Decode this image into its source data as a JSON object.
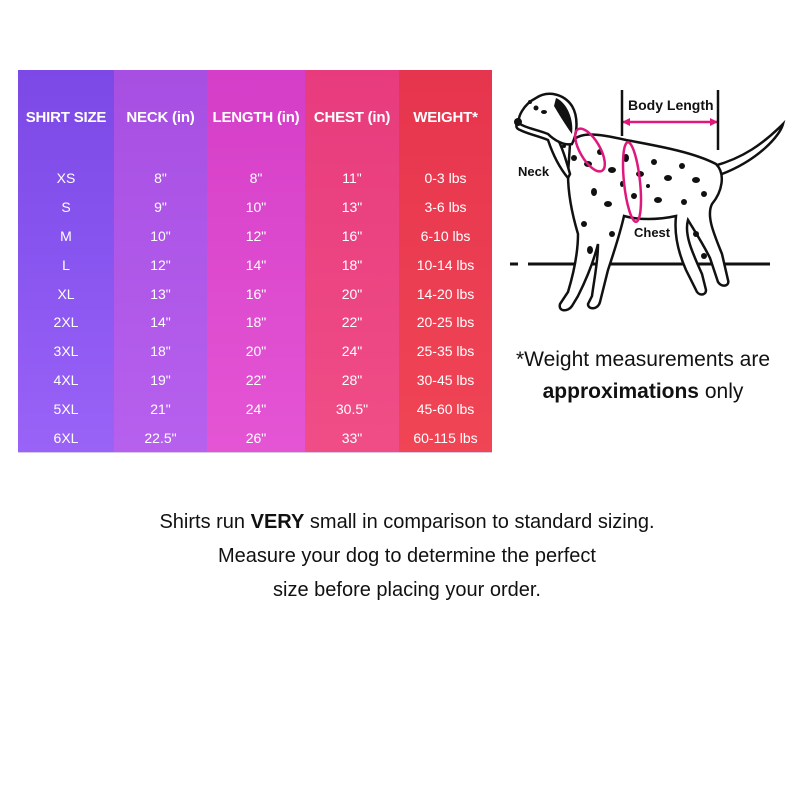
{
  "table": {
    "headers": {
      "size": "SHIRT SIZE",
      "neck": "NECK (in)",
      "length": "LENGTH (in)",
      "chest": "CHEST (in)",
      "weight": "WEIGHT*"
    },
    "rows": [
      {
        "size": "XS",
        "neck": "8\"",
        "length": "8\"",
        "chest": "11\"",
        "weight": "0-3 lbs"
      },
      {
        "size": "S",
        "neck": "9\"",
        "length": "10\"",
        "chest": "13\"",
        "weight": "3-6 lbs"
      },
      {
        "size": "M",
        "neck": "10\"",
        "length": "12\"",
        "chest": "16\"",
        "weight": "6-10 lbs"
      },
      {
        "size": "L",
        "neck": "12\"",
        "length": "14\"",
        "chest": "18\"",
        "weight": "10-14 lbs"
      },
      {
        "size": "XL",
        "neck": "13\"",
        "length": "16\"",
        "chest": "20\"",
        "weight": "14-20 lbs"
      },
      {
        "size": "2XL",
        "neck": "14\"",
        "length": "18\"",
        "chest": "22\"",
        "weight": "20-25 lbs"
      },
      {
        "size": "3XL",
        "neck": "18\"",
        "length": "20\"",
        "chest": "24\"",
        "weight": "25-35 lbs"
      },
      {
        "size": "4XL",
        "neck": "19\"",
        "length": "22\"",
        "chest": "28\"",
        "weight": "30-45 lbs"
      },
      {
        "size": "5XL",
        "neck": "21\"",
        "length": "24\"",
        "chest": "30.5\"",
        "weight": "45-60 lbs"
      },
      {
        "size": "6XL",
        "neck": "22.5\"",
        "length": "26\"",
        "chest": "33\"",
        "weight": "60-115 lbs"
      }
    ]
  },
  "diagram": {
    "body_length_label": "Body Length",
    "neck_label": "Neck",
    "chest_label": "Chest",
    "accent_color": "#e0187c",
    "icon": "dalmatian-dog-illustration"
  },
  "note": {
    "line1": "*Weight measurements are",
    "bold": "approximations",
    "rest": " only"
  },
  "footer": {
    "line1_pre": "Shirts run ",
    "line1_bold": "VERY",
    "line1_post": " small in comparison to standard sizing.",
    "line2": "Measure your dog to determine the perfect",
    "line3": "size before placing your order."
  }
}
